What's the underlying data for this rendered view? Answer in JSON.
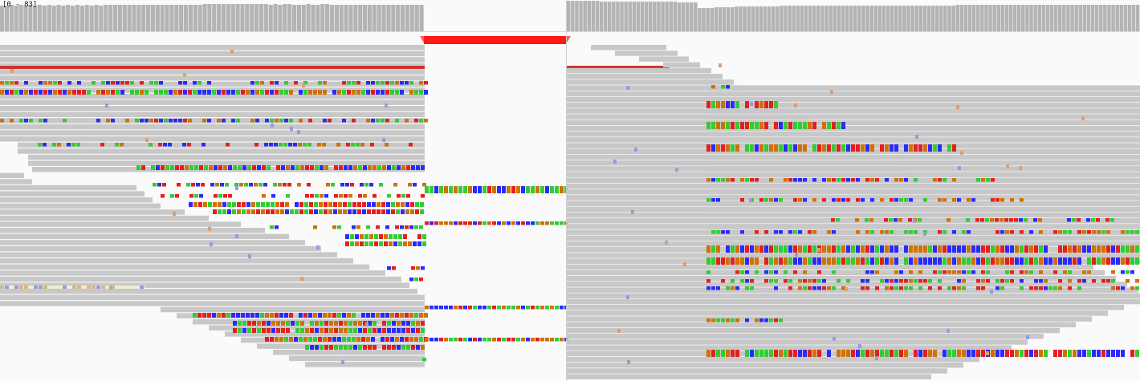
{
  "viewer": {
    "range_label": "[0 - 83]"
  },
  "coverage": {
    "max": 83,
    "left_values": [
      70,
      70,
      71,
      70,
      71,
      70,
      71,
      70,
      71,
      70,
      71,
      70,
      71,
      70,
      71,
      70,
      71,
      70,
      71,
      70,
      71,
      70,
      71,
      72,
      72,
      71,
      72,
      72,
      72,
      73,
      73,
      72,
      72,
      72,
      73,
      73,
      72,
      73,
      72,
      73,
      72,
      72,
      73,
      74,
      74,
      74,
      74,
      74,
      74,
      74,
      74,
      74,
      74,
      74,
      74,
      74,
      74,
      73,
      74,
      73,
      74,
      74,
      73,
      73,
      73,
      74,
      73,
      73,
      74,
      74,
      73,
      73,
      72,
      72,
      73,
      73,
      72,
      72,
      72,
      72,
      72,
      73,
      73,
      72,
      72,
      72,
      73,
      73,
      72,
      72
    ],
    "right_values": [
      83,
      83,
      82,
      82,
      82,
      82,
      82,
      82,
      81,
      81,
      81,
      81,
      81,
      80,
      80,
      80,
      80,
      80,
      80,
      80,
      80,
      80,
      80,
      80,
      80,
      80,
      80,
      79,
      79,
      79,
      79,
      79,
      63,
      63,
      64,
      64,
      65,
      65,
      66,
      66,
      66,
      67,
      67,
      67,
      67,
      68,
      68,
      68,
      68,
      68,
      68,
      68,
      69,
      69,
      69,
      69,
      69,
      69,
      69,
      69,
      69,
      69,
      70,
      70,
      70,
      70,
      70,
      70,
      70,
      70,
      69,
      69,
      69,
      69,
      69,
      70,
      70,
      70,
      70,
      70,
      70,
      70,
      70,
      70,
      70,
      70,
      70,
      70,
      70,
      70,
      70,
      70,
      70,
      70,
      70,
      71,
      71,
      71,
      71,
      71,
      71,
      71,
      71,
      71,
      71,
      71,
      71,
      71,
      71,
      71,
      71,
      71,
      71,
      71,
      71,
      71,
      71,
      71,
      71,
      71,
      71,
      71,
      71,
      71,
      71,
      71,
      71,
      71,
      71,
      71,
      71,
      71,
      71,
      71,
      71,
      71,
      71,
      71,
      71,
      71
    ],
    "bar_color": "#b4b4b4"
  },
  "colors": {
    "read": "#c8c8c8",
    "A": "#33cc33",
    "C": "#2a2aff",
    "G": "#d17105",
    "T": "#e51f1f",
    "insert_light": "#9a9ade",
    "deletion": "#ff1818",
    "mate_line": "#cc3333"
  }
}
